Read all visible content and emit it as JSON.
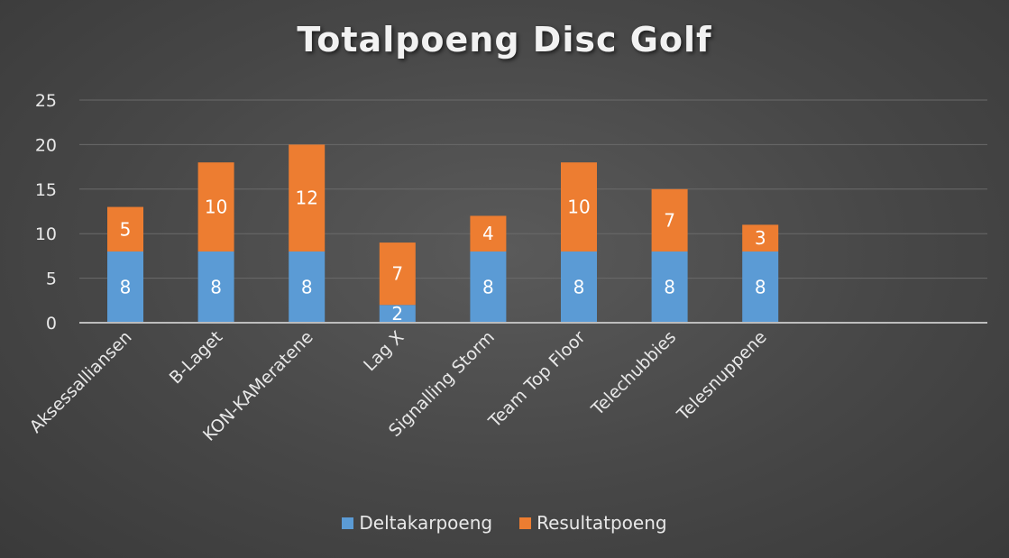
{
  "chart_data": {
    "type": "bar",
    "stacked": true,
    "title": "Totalpoeng Disc Golf",
    "categories": [
      "Aksessalliansen",
      "B-Laget",
      "KON-KAMeratene",
      "Lag X",
      "Signalling Storm",
      "Team Top Floor",
      "Telechubbies",
      "Telesnuppene"
    ],
    "series": [
      {
        "name": "Deltakarpoeng",
        "values": [
          8,
          8,
          8,
          2,
          8,
          8,
          8,
          8
        ],
        "color": "#5b9bd5"
      },
      {
        "name": "Resultatpoeng",
        "values": [
          5,
          10,
          12,
          7,
          4,
          10,
          7,
          3
        ],
        "color": "#ed7d31"
      }
    ],
    "ylim": [
      0,
      25
    ],
    "yticks": [
      0,
      5,
      10,
      15,
      20,
      25
    ],
    "grid": true,
    "legend_position": "bottom"
  }
}
